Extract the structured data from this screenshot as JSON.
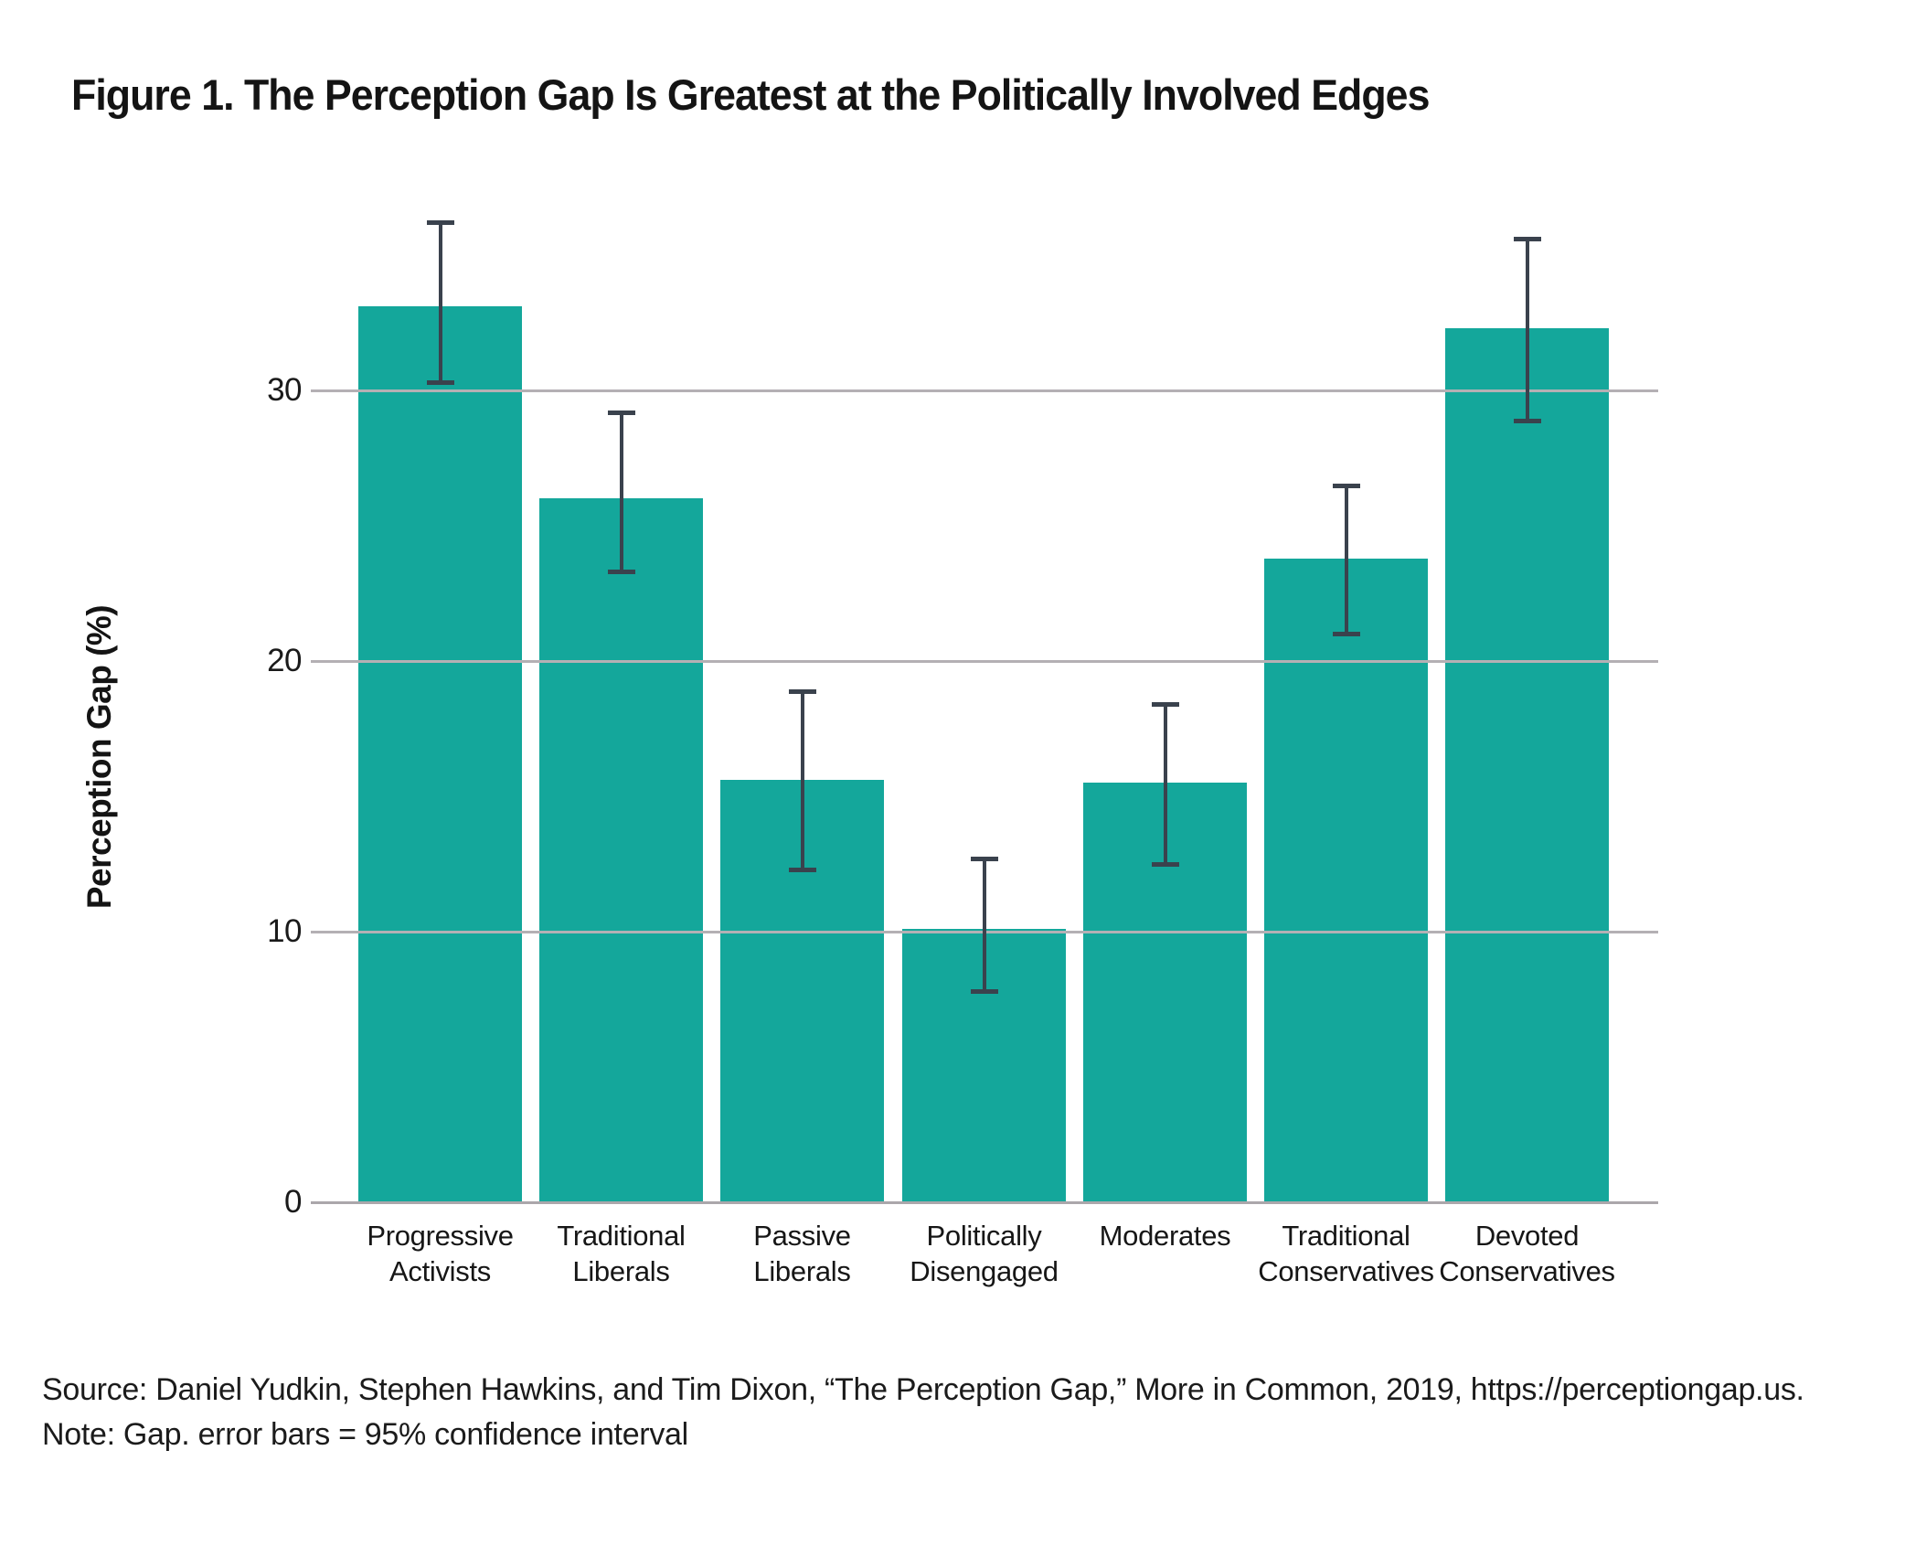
{
  "figure": {
    "title": "Figure 1. The Perception Gap Is Greatest at the Politically Involved Edges",
    "source_line": "Source: Daniel Yudkin, Stephen Hawkins, and Tim Dixon, “The Perception Gap,” More in Common, 2019, https://perceptiongap.us.",
    "note_line": "Note: Gap. error bars = 95% confidence interval"
  },
  "chart_data": {
    "type": "bar",
    "title": "Figure 1. The Perception Gap Is Greatest at the Politically Involved Edges",
    "xlabel": "",
    "ylabel": "Perception Gap (%)",
    "ylim": [
      0,
      39
    ],
    "yticks": [
      0,
      10,
      20,
      30
    ],
    "ytick_labels": [
      "0",
      "10",
      "20",
      "30"
    ],
    "grid": "horizontal gridlines drawn over bars",
    "legend": "none",
    "bar_color": "#14A79B",
    "error_bar_color": "#3A424D",
    "gridline_color": "#B4B0B4",
    "categories": [
      "Progressive Activists",
      "Traditional Liberals",
      "Passive Liberals",
      "Politically Disengaged",
      "Moderates",
      "Traditional Conservatives",
      "Devoted Conservatives"
    ],
    "category_label_lines": [
      [
        "Progressive",
        "Activists"
      ],
      [
        "Traditional",
        "Liberals"
      ],
      [
        "Passive",
        "Liberals"
      ],
      [
        "Politically",
        "Disengaged"
      ],
      [
        "Moderates"
      ],
      [
        "Traditional",
        "Conservatives"
      ],
      [
        "Devoted",
        "Conservatives"
      ]
    ],
    "values": [
      33.1,
      26.0,
      15.6,
      10.1,
      15.5,
      23.8,
      32.3
    ],
    "ci_low": [
      30.3,
      23.3,
      12.3,
      7.8,
      12.5,
      21.0,
      28.9
    ],
    "ci_high": [
      36.2,
      29.2,
      18.9,
      12.7,
      18.4,
      26.5,
      35.6
    ],
    "error_bars": "95% confidence interval"
  }
}
